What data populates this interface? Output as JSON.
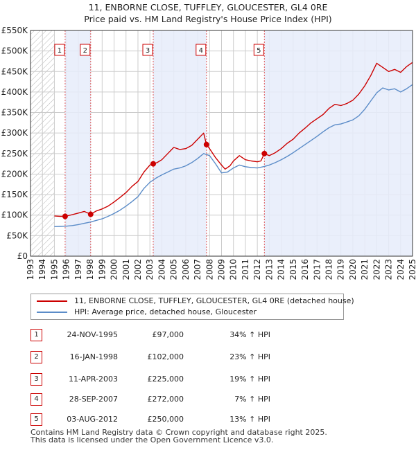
{
  "title": {
    "line1": "11, ENBORNE CLOSE, TUFFLEY, GLOUCESTER, GL4 0RE",
    "line2": "Price paid vs. HM Land Registry's House Price Index (HPI)"
  },
  "legend": {
    "property_label": "11, ENBORNE CLOSE, TUFFLEY, GLOUCESTER, GL4 0RE (detached house)",
    "hpi_label": "HPI: Average price, detached house, Gloucester"
  },
  "colors": {
    "property": "#cc0000",
    "hpi": "#5b8cc8",
    "sale_band": "#e6ecfa",
    "hatch": "#aaaaaa",
    "grid": "#cccccc"
  },
  "sales": [
    {
      "num": "1",
      "date": "24-NOV-1995",
      "price": "£97,000",
      "hpi": "34% ↑ HPI"
    },
    {
      "num": "2",
      "date": "16-JAN-1998",
      "price": "£102,000",
      "hpi": "23% ↑ HPI"
    },
    {
      "num": "3",
      "date": "11-APR-2003",
      "price": "£225,000",
      "hpi": "19% ↑ HPI"
    },
    {
      "num": "4",
      "date": "28-SEP-2007",
      "price": "£272,000",
      "hpi": "7% ↑ HPI"
    },
    {
      "num": "5",
      "date": "03-AUG-2012",
      "price": "£250,000",
      "hpi": "13% ↑ HPI"
    }
  ],
  "footer": {
    "line1": "Contains HM Land Registry data © Crown copyright and database right 2025.",
    "line2": "This data is licensed under the Open Government Licence v3.0."
  },
  "chart_data": {
    "type": "line",
    "title": "11, ENBORNE CLOSE, TUFFLEY, GLOUCESTER, GL4 0RE — Price paid vs. HM Land Registry's House Price Index (HPI)",
    "xlabel": "",
    "ylabel": "",
    "xlim": [
      1993,
      2025
    ],
    "ylim": [
      0,
      550000
    ],
    "yticks": [
      0,
      50000,
      100000,
      150000,
      200000,
      250000,
      300000,
      350000,
      400000,
      450000,
      500000,
      550000
    ],
    "ytick_labels": [
      "£0",
      "£50K",
      "£100K",
      "£150K",
      "£200K",
      "£250K",
      "£300K",
      "£350K",
      "£400K",
      "£450K",
      "£500K",
      "£550K"
    ],
    "xticks": [
      "1993",
      "1994",
      "1995",
      "1996",
      "1997",
      "1998",
      "1999",
      "2000",
      "2001",
      "2002",
      "2003",
      "2004",
      "2005",
      "2006",
      "2007",
      "2008",
      "2009",
      "2010",
      "2011",
      "2012",
      "2013",
      "2014",
      "2015",
      "2016",
      "2017",
      "2018",
      "2019",
      "2020",
      "2021",
      "2022",
      "2023",
      "2024",
      "2025"
    ],
    "grid": true,
    "hatched_range": [
      1993,
      1995
    ],
    "sale_markers": [
      {
        "label": "1",
        "x": 1995.9,
        "y": 97000
      },
      {
        "label": "2",
        "x": 1998.04,
        "y": 102000
      },
      {
        "label": "3",
        "x": 2003.28,
        "y": 225000
      },
      {
        "label": "4",
        "x": 2007.74,
        "y": 272000
      },
      {
        "label": "5",
        "x": 2012.59,
        "y": 250000
      }
    ],
    "series": [
      {
        "name": "11, ENBORNE CLOSE, TUFFLEY, GLOUCESTER, GL4 0RE (detached house)",
        "x": [
          1995.0,
          1995.5,
          1995.9,
          1996.5,
          1997.0,
          1997.5,
          1998.04,
          1998.5,
          1999.0,
          1999.5,
          2000.0,
          2000.5,
          2001.0,
          2001.5,
          2002.0,
          2002.5,
          2003.0,
          2003.28,
          2003.6,
          2004.0,
          2004.5,
          2005.0,
          2005.5,
          2006.0,
          2006.5,
          2007.0,
          2007.5,
          2007.74,
          2008.0,
          2008.5,
          2009.0,
          2009.3,
          2009.7,
          2010.0,
          2010.5,
          2011.0,
          2011.5,
          2012.0,
          2012.3,
          2012.59,
          2013.0,
          2013.5,
          2014.0,
          2014.5,
          2015.0,
          2015.5,
          2016.0,
          2016.5,
          2017.0,
          2017.5,
          2018.0,
          2018.5,
          2019.0,
          2019.5,
          2020.0,
          2020.5,
          2021.0,
          2021.5,
          2022.0,
          2022.5,
          2023.0,
          2023.5,
          2024.0,
          2024.5,
          2025.0
        ],
        "y": [
          98000,
          97000,
          97000,
          101000,
          105000,
          109000,
          102000,
          110000,
          115000,
          122000,
          132000,
          143000,
          155000,
          170000,
          182000,
          205000,
          222000,
          225000,
          228000,
          235000,
          250000,
          265000,
          260000,
          262000,
          270000,
          285000,
          300000,
          272000,
          262000,
          240000,
          222000,
          212000,
          220000,
          232000,
          245000,
          235000,
          232000,
          230000,
          232000,
          250000,
          245000,
          252000,
          262000,
          275000,
          285000,
          300000,
          312000,
          325000,
          335000,
          345000,
          360000,
          370000,
          367000,
          372000,
          380000,
          395000,
          415000,
          440000,
          470000,
          460000,
          450000,
          455000,
          448000,
          462000,
          472000
        ]
      },
      {
        "name": "HPI: Average price, detached house, Gloucester",
        "x": [
          1995.0,
          1995.5,
          1996.0,
          1996.5,
          1997.0,
          1997.5,
          1998.0,
          1998.5,
          1999.0,
          1999.5,
          2000.0,
          2000.5,
          2001.0,
          2001.5,
          2002.0,
          2002.5,
          2003.0,
          2003.5,
          2004.0,
          2004.5,
          2005.0,
          2005.5,
          2006.0,
          2006.5,
          2007.0,
          2007.5,
          2008.0,
          2008.5,
          2009.0,
          2009.5,
          2010.0,
          2010.5,
          2011.0,
          2011.5,
          2012.0,
          2012.5,
          2013.0,
          2013.5,
          2014.0,
          2014.5,
          2015.0,
          2015.5,
          2016.0,
          2016.5,
          2017.0,
          2017.5,
          2018.0,
          2018.5,
          2019.0,
          2019.5,
          2020.0,
          2020.5,
          2021.0,
          2021.5,
          2022.0,
          2022.5,
          2023.0,
          2023.5,
          2024.0,
          2024.5,
          2025.0
        ],
        "y": [
          72000,
          72500,
          73000,
          74500,
          77000,
          80000,
          83000,
          87000,
          91000,
          97000,
          104000,
          112000,
          122000,
          133000,
          145000,
          165000,
          180000,
          190000,
          198000,
          205000,
          212000,
          215000,
          220000,
          228000,
          238000,
          250000,
          245000,
          225000,
          203000,
          205000,
          215000,
          222000,
          218000,
          216000,
          215000,
          218000,
          222000,
          228000,
          235000,
          243000,
          252000,
          262000,
          272000,
          282000,
          292000,
          303000,
          313000,
          320000,
          322000,
          327000,
          332000,
          342000,
          358000,
          378000,
          398000,
          410000,
          405000,
          408000,
          400000,
          408000,
          418000
        ]
      }
    ]
  }
}
